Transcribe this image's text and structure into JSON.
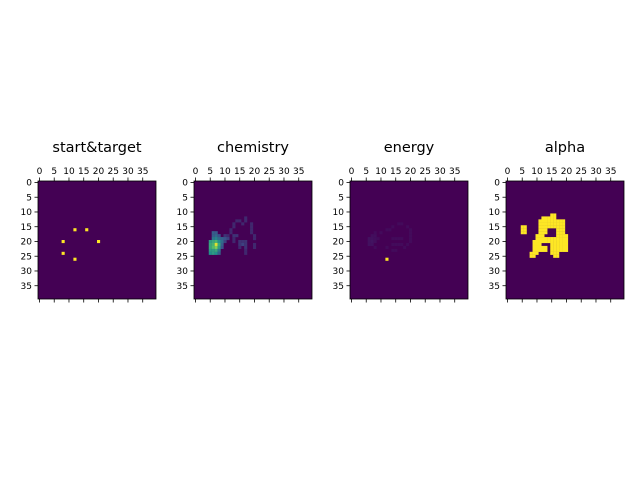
{
  "chart_data": [
    {
      "type": "heatmap",
      "title": "start&target",
      "shape": [
        40,
        40
      ],
      "colormap": "viridis",
      "vmin": 0,
      "vmax": 1,
      "xticks": [
        0,
        5,
        10,
        15,
        20,
        25,
        30,
        35
      ],
      "yticks": [
        0,
        5,
        10,
        15,
        20,
        25,
        30,
        35
      ],
      "cells": [
        [
          16,
          12,
          1
        ],
        [
          16,
          16,
          1
        ],
        [
          20,
          8,
          1
        ],
        [
          20,
          20,
          1
        ],
        [
          24,
          8,
          1
        ],
        [
          26,
          12,
          1
        ]
      ]
    },
    {
      "type": "heatmap",
      "title": "chemistry",
      "shape": [
        40,
        40
      ],
      "colormap": "viridis",
      "vmin": 0,
      "vmax": 1,
      "xticks": [
        0,
        5,
        10,
        15,
        20,
        25,
        30,
        35
      ],
      "yticks": [
        0,
        5,
        10,
        15,
        20,
        25,
        30,
        35
      ],
      "cells": [
        [
          12,
          17,
          0.12
        ],
        [
          13,
          14,
          0.12
        ],
        [
          13,
          15,
          0.12
        ],
        [
          13,
          17,
          0.12
        ],
        [
          14,
          13,
          0.12
        ],
        [
          14,
          16,
          0.12
        ],
        [
          14,
          19,
          0.12
        ],
        [
          15,
          13,
          0.12
        ],
        [
          15,
          19,
          0.12
        ],
        [
          16,
          12,
          0.12
        ],
        [
          16,
          19,
          0.12
        ],
        [
          17,
          6,
          0.3
        ],
        [
          17,
          7,
          0.28
        ],
        [
          17,
          12,
          0.12
        ],
        [
          17,
          19,
          0.12
        ],
        [
          18,
          6,
          0.3
        ],
        [
          18,
          7,
          0.35
        ],
        [
          18,
          8,
          0.25
        ],
        [
          18,
          10,
          0.15
        ],
        [
          18,
          11,
          0.12
        ],
        [
          18,
          13,
          0.15
        ],
        [
          18,
          14,
          0.15
        ],
        [
          18,
          20,
          0.12
        ],
        [
          19,
          6,
          0.4
        ],
        [
          19,
          7,
          0.45
        ],
        [
          19,
          8,
          0.35
        ],
        [
          19,
          9,
          0.3
        ],
        [
          19,
          10,
          0.25
        ],
        [
          19,
          11,
          0.2
        ],
        [
          19,
          13,
          0.12
        ],
        [
          19,
          20,
          0.12
        ],
        [
          20,
          5,
          0.55
        ],
        [
          20,
          6,
          0.6
        ],
        [
          20,
          7,
          0.65
        ],
        [
          20,
          8,
          0.5
        ],
        [
          20,
          9,
          0.35
        ],
        [
          20,
          10,
          0.2
        ],
        [
          20,
          13,
          0.12
        ],
        [
          20,
          15,
          0.15
        ],
        [
          20,
          16,
          0.15
        ],
        [
          20,
          17,
          0.15
        ],
        [
          21,
          5,
          0.6
        ],
        [
          21,
          6,
          0.65
        ],
        [
          21,
          7,
          0.95
        ],
        [
          21,
          8,
          0.6
        ],
        [
          21,
          9,
          0.3
        ],
        [
          21,
          15,
          0.15
        ],
        [
          21,
          16,
          0.2
        ],
        [
          21,
          17,
          0.15
        ],
        [
          21,
          20,
          0.12
        ],
        [
          22,
          5,
          0.6
        ],
        [
          22,
          6,
          0.7
        ],
        [
          22,
          7,
          0.8
        ],
        [
          22,
          8,
          0.55
        ],
        [
          22,
          9,
          0.25
        ],
        [
          22,
          15,
          0.12
        ],
        [
          22,
          17,
          0.15
        ],
        [
          22,
          20,
          0.12
        ],
        [
          23,
          5,
          0.55
        ],
        [
          23,
          6,
          0.55
        ],
        [
          23,
          7,
          0.6
        ],
        [
          23,
          8,
          0.4
        ],
        [
          23,
          17,
          0.12
        ],
        [
          24,
          5,
          0.5
        ],
        [
          24,
          6,
          0.55
        ],
        [
          24,
          7,
          0.5
        ],
        [
          24,
          8,
          0.3
        ],
        [
          24,
          17,
          0.12
        ]
      ]
    },
    {
      "type": "heatmap",
      "title": "energy",
      "shape": [
        40,
        40
      ],
      "colormap": "viridis",
      "vmin": 0,
      "vmax": 1,
      "xticks": [
        0,
        5,
        10,
        15,
        20,
        25,
        30,
        35
      ],
      "yticks": [
        0,
        5,
        10,
        15,
        20,
        25,
        30,
        35
      ],
      "cells": [
        [
          14,
          16,
          0.03
        ],
        [
          14,
          17,
          0.03
        ],
        [
          15,
          14,
          0.03
        ],
        [
          15,
          19,
          0.03
        ],
        [
          16,
          12,
          0.03
        ],
        [
          16,
          13,
          0.03
        ],
        [
          16,
          20,
          0.03
        ],
        [
          17,
          8,
          0.03
        ],
        [
          17,
          10,
          0.03
        ],
        [
          17,
          20,
          0.03
        ],
        [
          18,
          7,
          0.04
        ],
        [
          18,
          8,
          0.04
        ],
        [
          18,
          20,
          0.03
        ],
        [
          19,
          6,
          0.05
        ],
        [
          19,
          7,
          0.05
        ],
        [
          19,
          8,
          0.04
        ],
        [
          19,
          9,
          0.03
        ],
        [
          19,
          14,
          0.03
        ],
        [
          19,
          15,
          0.03
        ],
        [
          19,
          16,
          0.03
        ],
        [
          19,
          17,
          0.03
        ],
        [
          19,
          20,
          0.03
        ],
        [
          20,
          6,
          0.05
        ],
        [
          20,
          7,
          0.06
        ],
        [
          20,
          8,
          0.04
        ],
        [
          20,
          20,
          0.03
        ],
        [
          21,
          6,
          0.05
        ],
        [
          21,
          7,
          0.05
        ],
        [
          21,
          14,
          0.03
        ],
        [
          21,
          15,
          0.03
        ],
        [
          21,
          16,
          0.03
        ],
        [
          21,
          17,
          0.03
        ],
        [
          21,
          19,
          0.03
        ],
        [
          22,
          8,
          0.03
        ],
        [
          22,
          12,
          0.03
        ],
        [
          22,
          18,
          0.03
        ],
        [
          23,
          14,
          0.03
        ],
        [
          23,
          15,
          0.03
        ],
        [
          26,
          12,
          1
        ]
      ]
    },
    {
      "type": "heatmap",
      "title": "alpha",
      "shape": [
        40,
        40
      ],
      "colormap": "viridis",
      "vmin": 0,
      "vmax": 1,
      "xticks": [
        0,
        5,
        10,
        15,
        20,
        25,
        30,
        35
      ],
      "yticks": [
        0,
        5,
        10,
        15,
        20,
        25,
        30,
        35
      ],
      "cells": [
        [
          11,
          15,
          1
        ],
        [
          11,
          16,
          1
        ],
        [
          12,
          12,
          1
        ],
        [
          12,
          13,
          1
        ],
        [
          12,
          14,
          1
        ],
        [
          12,
          15,
          1
        ],
        [
          12,
          16,
          1
        ],
        [
          13,
          11,
          1
        ],
        [
          13,
          12,
          1
        ],
        [
          13,
          13,
          1
        ],
        [
          13,
          14,
          1
        ],
        [
          13,
          15,
          1
        ],
        [
          13,
          16,
          1
        ],
        [
          13,
          17,
          1
        ],
        [
          13,
          18,
          1
        ],
        [
          13,
          19,
          1
        ],
        [
          14,
          11,
          1
        ],
        [
          14,
          12,
          1
        ],
        [
          14,
          13,
          1
        ],
        [
          14,
          14,
          1
        ],
        [
          14,
          15,
          1
        ],
        [
          14,
          16,
          1
        ],
        [
          14,
          17,
          1
        ],
        [
          14,
          18,
          1
        ],
        [
          14,
          19,
          1
        ],
        [
          15,
          5,
          1
        ],
        [
          15,
          6,
          1
        ],
        [
          15,
          11,
          1
        ],
        [
          15,
          12,
          1
        ],
        [
          15,
          13,
          1
        ],
        [
          15,
          14,
          1
        ],
        [
          15,
          15,
          1
        ],
        [
          15,
          16,
          1
        ],
        [
          15,
          17,
          1
        ],
        [
          15,
          18,
          1
        ],
        [
          15,
          19,
          1
        ],
        [
          16,
          5,
          1
        ],
        [
          16,
          6,
          1
        ],
        [
          16,
          11,
          1
        ],
        [
          16,
          12,
          1
        ],
        [
          16,
          13,
          1
        ],
        [
          16,
          17,
          1
        ],
        [
          16,
          18,
          1
        ],
        [
          16,
          19,
          1
        ],
        [
          17,
          5,
          1
        ],
        [
          17,
          6,
          1
        ],
        [
          17,
          11,
          1
        ],
        [
          17,
          12,
          1
        ],
        [
          17,
          13,
          1
        ],
        [
          17,
          17,
          1
        ],
        [
          17,
          18,
          1
        ],
        [
          17,
          19,
          1
        ],
        [
          18,
          10,
          1
        ],
        [
          18,
          11,
          1
        ],
        [
          18,
          12,
          1
        ],
        [
          18,
          17,
          1
        ],
        [
          18,
          18,
          1
        ],
        [
          18,
          19,
          1
        ],
        [
          18,
          20,
          1
        ],
        [
          19,
          10,
          1
        ],
        [
          19,
          11,
          1
        ],
        [
          19,
          12,
          1
        ],
        [
          19,
          13,
          1
        ],
        [
          19,
          14,
          1
        ],
        [
          19,
          15,
          1
        ],
        [
          19,
          16,
          1
        ],
        [
          19,
          17,
          1
        ],
        [
          19,
          18,
          1
        ],
        [
          19,
          19,
          1
        ],
        [
          19,
          20,
          1
        ],
        [
          20,
          9,
          1
        ],
        [
          20,
          10,
          1
        ],
        [
          20,
          11,
          1
        ],
        [
          20,
          12,
          1
        ],
        [
          20,
          13,
          1
        ],
        [
          20,
          14,
          1
        ],
        [
          20,
          15,
          1
        ],
        [
          20,
          16,
          1
        ],
        [
          20,
          17,
          1
        ],
        [
          20,
          18,
          1
        ],
        [
          20,
          19,
          1
        ],
        [
          20,
          20,
          1
        ],
        [
          21,
          9,
          1
        ],
        [
          21,
          10,
          1
        ],
        [
          21,
          11,
          1
        ],
        [
          21,
          15,
          1
        ],
        [
          21,
          16,
          1
        ],
        [
          21,
          17,
          1
        ],
        [
          21,
          18,
          1
        ],
        [
          21,
          19,
          1
        ],
        [
          21,
          20,
          1
        ],
        [
          22,
          9,
          1
        ],
        [
          22,
          10,
          1
        ],
        [
          22,
          11,
          1
        ],
        [
          22,
          12,
          1
        ],
        [
          22,
          13,
          1
        ],
        [
          22,
          15,
          1
        ],
        [
          22,
          16,
          1
        ],
        [
          22,
          17,
          1
        ],
        [
          22,
          18,
          1
        ],
        [
          22,
          19,
          1
        ],
        [
          22,
          20,
          1
        ],
        [
          23,
          9,
          1
        ],
        [
          23,
          10,
          1
        ],
        [
          23,
          11,
          1
        ],
        [
          23,
          12,
          1
        ],
        [
          23,
          13,
          1
        ],
        [
          23,
          15,
          1
        ],
        [
          23,
          16,
          1
        ],
        [
          23,
          17,
          1
        ],
        [
          23,
          18,
          1
        ],
        [
          23,
          19,
          1
        ],
        [
          23,
          20,
          1
        ],
        [
          24,
          8,
          1
        ],
        [
          24,
          9,
          1
        ],
        [
          24,
          10,
          1
        ],
        [
          24,
          15,
          1
        ],
        [
          24,
          16,
          1
        ],
        [
          24,
          17,
          1
        ],
        [
          25,
          8,
          1
        ],
        [
          25,
          9,
          1
        ],
        [
          25,
          16,
          1
        ],
        [
          25,
          17,
          1
        ]
      ]
    }
  ]
}
